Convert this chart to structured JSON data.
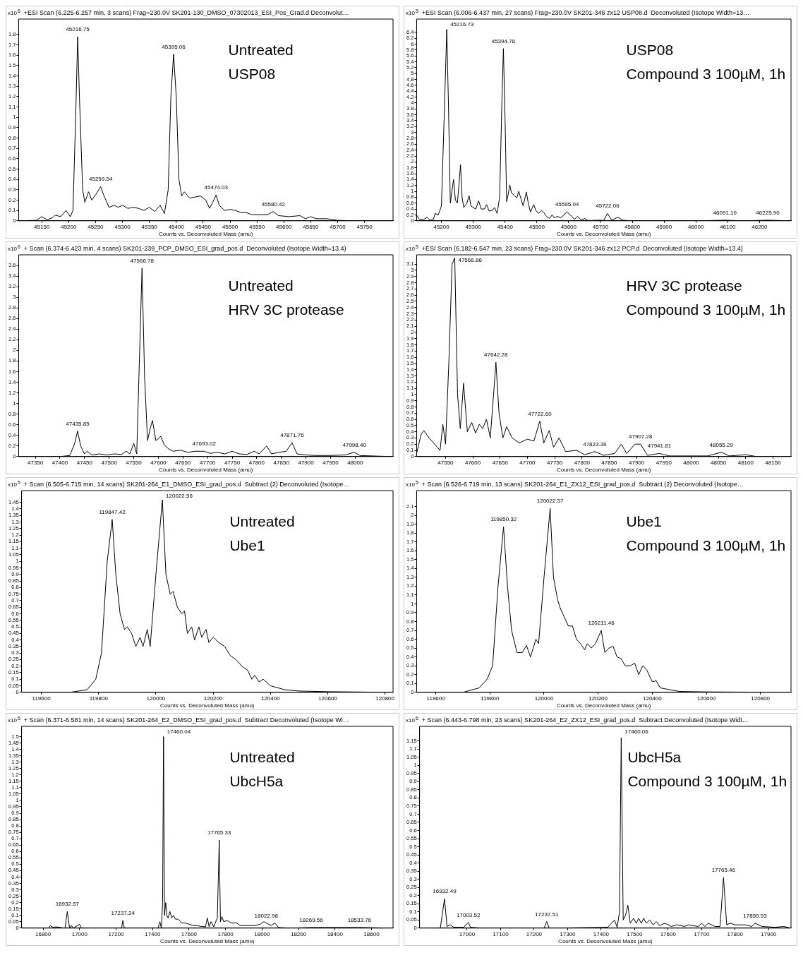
{
  "chart_data": [
    {
      "type": "line",
      "title": "+ESI Scan (6.225-6.257 min, 3 scans) Frag=230.0V SK201-130_DMSO_07302013_ESI_Pos_Grad.d Deconvolut…",
      "xlabel": "Counts vs. Deconvoluted Mass (amu)",
      "ylabel": "x10$^{6}$",
      "marker": "none",
      "line_style": "solid",
      "grid": false,
      "xlim": [
        45107,
        45803
      ],
      "xticks": [
        45150,
        45200,
        45250,
        45300,
        45350,
        45400,
        45450,
        45500,
        45550,
        45600,
        45650,
        45700,
        45750
      ],
      "ylim": [
        0,
        1.95
      ],
      "yticks": [
        0,
        0.1,
        0.2,
        0.3,
        0.4,
        0.5,
        0.6,
        0.7,
        0.8,
        0.9,
        1,
        1.1,
        1.2,
        1.3,
        1.4,
        1.5,
        1.6,
        1.7,
        1.8
      ],
      "x": [
        45110,
        45140,
        45150,
        45160,
        45170,
        45175,
        45185,
        45195,
        45203,
        45208,
        45213,
        45216.75,
        45220,
        45226,
        45230,
        45237,
        45243,
        45250,
        45259.54,
        45265,
        45275,
        45285,
        45292,
        45300,
        45310,
        45320,
        45330,
        45340,
        45350,
        45360,
        45370,
        45378,
        45385,
        45390,
        45395.06,
        45400,
        45405,
        45410,
        45415,
        45425,
        45435,
        45445,
        45455,
        45462,
        45468,
        45474.03,
        45480,
        45490,
        45500,
        45510,
        45520,
        45530,
        45540,
        45560,
        45570,
        45580.42,
        45590,
        45610,
        45630,
        45640,
        45650,
        45660,
        45680,
        45700,
        45730,
        45800
      ],
      "series": [
        {
          "color": "#000000",
          "values": [
            0,
            0.005,
            0.04,
            0.01,
            0.03,
            0.055,
            0.04,
            0.1,
            0.04,
            0.1,
            1.0,
            1.78,
            1.2,
            0.3,
            0.18,
            0.28,
            0.2,
            0.25,
            0.33,
            0.25,
            0.13,
            0.15,
            0.13,
            0.15,
            0.12,
            0.13,
            0.12,
            0.1,
            0.13,
            0.09,
            0.15,
            0.07,
            0.3,
            1.2,
            1.61,
            1.2,
            0.4,
            0.24,
            0.28,
            0.22,
            0.23,
            0.24,
            0.2,
            0.12,
            0.18,
            0.25,
            0.15,
            0.1,
            0.11,
            0.1,
            0.08,
            0.08,
            0.06,
            0.06,
            0.06,
            0.09,
            0.05,
            0.04,
            0.05,
            0.02,
            0.04,
            0.02,
            0.02,
            0.005,
            0,
            0
          ]
        }
      ],
      "annotations": [
        "Untreated",
        "USP08",
        {
          "text": "45216.75",
          "x": 45216.75,
          "y": 1.78
        },
        {
          "text": "45259.54",
          "x": 45259.54,
          "y": 0.33
        },
        {
          "text": "45395.06",
          "x": 45395.06,
          "y": 1.61
        },
        {
          "text": "45474.03",
          "x": 45474.03,
          "y": 0.25
        },
        {
          "text": "45580.42",
          "x": 45580.42,
          "y": 0.09
        }
      ]
    },
    {
      "type": "line",
      "title": "+ESI Scan (6.006-6.437 min, 27 scans) Frag=230.0V SK201-346 zx12 USP08.d  Deconvoluted (Isotope Width=13…",
      "xlabel": "Counts vs. Deconvoluted Mass (amu)",
      "ylabel": "x10$^{5}$",
      "marker": "none",
      "line_style": "solid",
      "grid": false,
      "xlim": [
        45122,
        46299
      ],
      "xticks": [
        45200,
        45300,
        45400,
        45500,
        45600,
        45700,
        45800,
        45900,
        46000,
        46100,
        46200
      ],
      "ylim": [
        0,
        6.85
      ],
      "yticks": [
        0,
        0.2,
        0.4,
        0.6,
        0.8,
        1,
        1.2,
        1.4,
        1.6,
        1.8,
        2,
        2.2,
        2.4,
        2.6,
        2.8,
        3,
        3.2,
        3.4,
        3.6,
        3.8,
        4,
        4.2,
        4.4,
        4.6,
        4.8,
        5,
        5.2,
        5.4,
        5.6,
        5.8,
        6,
        6.2,
        6.4
      ],
      "x": [
        45122,
        45130,
        45145,
        45155,
        45165,
        45175,
        45180,
        45190,
        45200,
        45210,
        45216.73,
        45222,
        45228,
        45233,
        45238,
        45244,
        45250,
        45255,
        45260,
        45265,
        45270,
        45280,
        45287,
        45293,
        45300,
        45308,
        45317,
        45325,
        45335,
        45342,
        45350,
        45360,
        45367,
        45375,
        45383,
        45390,
        45394.78,
        45400,
        45405,
        45410,
        45415,
        45420,
        45430,
        45437,
        45443,
        45450,
        45457,
        45467,
        45473,
        45480,
        45490,
        45497,
        45505,
        45515,
        45522,
        45530,
        45540,
        45548,
        45555,
        45565,
        45575,
        45595.04,
        45610,
        45618,
        45628,
        45640,
        45650,
        45660,
        45700,
        45710,
        45722.06,
        45735,
        45755,
        45770,
        45800,
        46000,
        46091.19,
        46150,
        46225.9,
        46299
      ],
      "series": [
        {
          "color": "#000000",
          "values": [
            0.2,
            0.05,
            0.05,
            0.12,
            0.02,
            0.05,
            0.25,
            0.2,
            0.5,
            4.0,
            6.5,
            4,
            0.6,
            1.0,
            1.4,
            0.7,
            0.6,
            1.2,
            1.9,
            0.8,
            0.45,
            0.6,
            0.85,
            0.5,
            0.45,
            0.4,
            0.68,
            0.4,
            0.4,
            0.55,
            0.33,
            0.35,
            0.45,
            0.25,
            0.8,
            4,
            5.85,
            3.5,
            0.65,
            0.9,
            1.22,
            0.95,
            0.85,
            0.78,
            1.0,
            0.75,
            0.5,
            0.98,
            0.6,
            0.3,
            0.55,
            0.35,
            0.25,
            0.35,
            0.28,
            0.15,
            0.08,
            0.2,
            0.1,
            0.15,
            0.1,
            0.3,
            0.15,
            0.05,
            0.15,
            0.02,
            0.08,
            0.01,
            0.02,
            0.01,
            0.25,
            0.02,
            0.12,
            0.02,
            0,
            0,
            0.02,
            0,
            0.02,
            0
          ]
        }
      ],
      "annotations": [
        "USP08",
        "Compound 3 100µM, 1h",
        {
          "text": "45216.73",
          "x": 45216.73,
          "y": 6.5
        },
        {
          "text": "45394.78",
          "x": 45394.78,
          "y": 5.85
        },
        {
          "text": "45595.04",
          "x": 45595.04,
          "y": 0.3
        },
        {
          "text": "45722.06",
          "x": 45722.06,
          "y": 0.25
        },
        {
          "text": "46091.19",
          "x": 46091.19,
          "y": 0.02
        },
        {
          "text": "46225.90",
          "x": 46225.9,
          "y": 0.02
        }
      ]
    },
    {
      "type": "line",
      "title": "+ Scan (6.374-6.423 min, 4 scans) SK201-239_PCP_DMSO_ESI_grad_pos.d  Deconvoluted (Isotope Width=13.4)",
      "xlabel": "Counts vs. Deconvoluted Mass (amu)",
      "ylabel": "x10$^{6}$",
      "marker": "none",
      "line_style": "solid",
      "grid": false,
      "xlim": [
        47316,
        48077
      ],
      "xticks": [
        47350,
        47400,
        47450,
        47500,
        47550,
        47600,
        47650,
        47700,
        47750,
        47800,
        47850,
        47900,
        47950,
        48000
      ],
      "ylim": [
        0,
        3.8
      ],
      "yticks": [
        0,
        0.2,
        0.4,
        0.6,
        0.8,
        1,
        1.2,
        1.4,
        1.6,
        1.8,
        2,
        2.2,
        2.4,
        2.6,
        2.8,
        3,
        3.2,
        3.4,
        3.6
      ],
      "x": [
        47316,
        47400,
        47420,
        47430,
        47435.85,
        47442,
        47450,
        47455,
        47465,
        47480,
        47495,
        47510,
        47525,
        47535,
        47542,
        47550,
        47556,
        47562,
        47566.78,
        47572,
        47578,
        47584,
        47588,
        47595,
        47605,
        47612,
        47620,
        47630,
        47645,
        47660,
        47675,
        47693.02,
        47705,
        47720,
        47735,
        47750,
        47765,
        47780,
        47795,
        47805,
        47820,
        47830,
        47845,
        47860,
        47871.76,
        47882,
        47900,
        47920,
        47950,
        47980,
        47998.4,
        48010,
        48040,
        48077
      ],
      "series": [
        {
          "color": "#000000",
          "values": [
            0,
            0,
            0.02,
            0.25,
            0.48,
            0.2,
            0.05,
            0.1,
            0.03,
            0.05,
            0.03,
            0.05,
            0.04,
            0.1,
            0.05,
            0.25,
            0.05,
            2.0,
            3.55,
            1.5,
            0.3,
            0.55,
            0.68,
            0.3,
            0.38,
            0.22,
            0.15,
            0.1,
            0.12,
            0.08,
            0.1,
            0.1,
            0.06,
            0.08,
            0.05,
            0.1,
            0.05,
            0.04,
            0.1,
            0.05,
            0.2,
            0.05,
            0.08,
            0.1,
            0.26,
            0.05,
            0.03,
            0.02,
            0.02,
            0.03,
            0.08,
            0.02,
            0.01,
            0
          ]
        }
      ],
      "annotations": [
        "Untreated",
        "HRV 3C protease",
        {
          "text": "47435.85",
          "x": 47435.85,
          "y": 0.48
        },
        {
          "text": "47566.78",
          "x": 47566.78,
          "y": 3.55
        },
        {
          "text": "47693.02",
          "x": 47693.02,
          "y": 0.1
        },
        {
          "text": "47871.76",
          "x": 47871.76,
          "y": 0.26
        },
        {
          "text": "47998.40",
          "x": 47998.4,
          "y": 0.08
        }
      ]
    },
    {
      "type": "line",
      "title": "+ESI Scan (6.182-6.547 min, 23 scans) Frag=230.0V SK201-346 zx12 PCP.d  Deconvoluted (Isotope Width=13.4)",
      "xlabel": "Counts vs. Deconvoluted Mass (amu)",
      "ylabel": "x10$^{5}$",
      "marker": "none",
      "line_style": "solid",
      "grid": false,
      "xlim": [
        47497,
        48183
      ],
      "xticks": [
        47550,
        47600,
        47650,
        47700,
        47750,
        47800,
        47850,
        47900,
        47950,
        48000,
        48050,
        48100,
        48150
      ],
      "ylim": [
        0,
        3.25
      ],
      "yticks": [
        0,
        0.1,
        0.2,
        0.3,
        0.4,
        0.5,
        0.6,
        0.7,
        0.8,
        0.9,
        1,
        1.1,
        1.2,
        1.3,
        1.4,
        1.5,
        1.6,
        1.7,
        1.8,
        1.9,
        2,
        2.1,
        2.2,
        2.3,
        2.4,
        2.5,
        2.6,
        2.7,
        2.8,
        2.9,
        3,
        3.1
      ],
      "x": [
        47497,
        47505,
        47510,
        47520,
        47530,
        47540,
        47545,
        47550,
        47556,
        47562,
        47566.86,
        47572,
        47577,
        47583,
        47590,
        47598,
        47605,
        47612,
        47618,
        47625,
        47632,
        47638,
        47642.28,
        47648,
        47655,
        47662,
        47672,
        47685,
        47700,
        47712,
        47722.6,
        47730,
        47740,
        47748,
        47758,
        47770,
        47790,
        47805,
        47823.39,
        47840,
        47860,
        47872,
        47882,
        47897,
        47907.28,
        47920,
        47941.81,
        47960,
        48000,
        48030,
        48055.29,
        48070,
        48100,
        48120,
        48183
      ],
      "series": [
        {
          "color": "#000000",
          "values": [
            0.05,
            0.35,
            0.42,
            0.3,
            0.2,
            0.1,
            0.52,
            0.2,
            1.5,
            3.1,
            3.2,
            1.0,
            0.45,
            1.18,
            0.4,
            0.55,
            0.38,
            0.52,
            0.45,
            0.6,
            0.3,
            1.0,
            1.52,
            0.7,
            0.3,
            0.48,
            0.3,
            0.22,
            0.28,
            0.25,
            0.57,
            0.22,
            0.42,
            0.15,
            0.3,
            0.08,
            0.1,
            0.03,
            0.08,
            0.02,
            0.05,
            0.2,
            0.05,
            0.2,
            0.2,
            0.02,
            0.05,
            0.01,
            0.01,
            0.01,
            0.07,
            0.01,
            0.03,
            0,
            0
          ]
        }
      ],
      "annotations": [
        "HRV 3C protease",
        "Compound 3 100µM, 1h",
        {
          "text": "47566.86",
          "x": 47566.86,
          "y": 3.2
        },
        {
          "text": "47642.28",
          "x": 47642.28,
          "y": 1.52
        },
        {
          "text": "47722.60",
          "x": 47722.6,
          "y": 0.57
        },
        {
          "text": "47823.39",
          "x": 47823.39,
          "y": 0.08
        },
        {
          "text": "47907.28",
          "x": 47907.28,
          "y": 0.2
        },
        {
          "text": "47941.81",
          "x": 47941.81,
          "y": 0.05
        },
        {
          "text": "48055.29",
          "x": 48055.29,
          "y": 0.07
        }
      ]
    },
    {
      "type": "line",
      "title": "+ Scan (6.505-6.715 min, 14 scans) SK201-264_E1_DMSO_ESI_grad_pos.d  Subtract (2) Deconvoluted (Isotope…",
      "xlabel": "Counts vs. Deconvoluted Mass (amu)",
      "ylabel": "x10$^{5}$",
      "marker": "none",
      "line_style": "solid",
      "grid": false,
      "xlim": [
        119531,
        120828
      ],
      "xticks": [
        119600,
        119800,
        120000,
        120200,
        120400,
        120600,
        120800
      ],
      "ylim": [
        0,
        1.54
      ],
      "yticks": [
        0,
        0.05,
        0.1,
        0.15,
        0.2,
        0.25,
        0.3,
        0.35,
        0.4,
        0.45,
        0.5,
        0.55,
        0.6,
        0.65,
        0.7,
        0.75,
        0.8,
        0.85,
        0.9,
        0.95,
        1,
        1.05,
        1.1,
        1.15,
        1.2,
        1.25,
        1.3,
        1.35,
        1.4,
        1.45
      ],
      "x": [
        119531,
        119700,
        119760,
        119790,
        119810,
        119830,
        119847.42,
        119860,
        119875,
        119890,
        119900,
        119915,
        119930,
        119945,
        119955,
        119970,
        119980,
        120000,
        120022.56,
        120035,
        120050,
        120060,
        120075,
        120090,
        120100,
        120110,
        120125,
        120135,
        120150,
        120160,
        120175,
        120185,
        120200,
        120220,
        120240,
        120260,
        120280,
        120300,
        120320,
        120335,
        120345,
        120360,
        120375,
        120400,
        120450,
        120500,
        120600,
        120828
      ],
      "series": [
        {
          "color": "#000000",
          "values": [
            0,
            0,
            0.02,
            0.1,
            0.3,
            1.0,
            1.32,
            0.9,
            0.6,
            0.48,
            0.5,
            0.45,
            0.35,
            0.42,
            0.35,
            0.48,
            0.35,
            0.9,
            1.47,
            0.9,
            0.75,
            0.77,
            0.65,
            0.6,
            0.62,
            0.45,
            0.5,
            0.4,
            0.5,
            0.42,
            0.48,
            0.38,
            0.42,
            0.38,
            0.35,
            0.28,
            0.25,
            0.2,
            0.17,
            0.1,
            0.13,
            0.08,
            0.1,
            0.05,
            0.02,
            0.01,
            0.005,
            0
          ]
        }
      ],
      "annotations": [
        "Untreated",
        "Ube1",
        {
          "text": "119847.42",
          "x": 119847.42,
          "y": 1.32
        },
        {
          "text": "120022.56",
          "x": 120022.56,
          "y": 1.47
        }
      ]
    },
    {
      "type": "line",
      "title": "+ Scan (6.526-6.719 min, 13 scans) SK201-264_E1_ZX12_ESI_grad_pos.d  Subtract (2) Deconvoluted (Isotope…",
      "xlabel": "Counts vs. Deconvoluted Mass (amu)",
      "ylabel": "x10$^{5}$",
      "marker": "none",
      "line_style": "solid",
      "grid": false,
      "xlim": [
        119529,
        120913
      ],
      "xticks": [
        119600,
        119800,
        120000,
        120200,
        120400,
        120600,
        120800
      ],
      "ylim": [
        0,
        2.28
      ],
      "yticks": [
        0,
        0.1,
        0.2,
        0.3,
        0.4,
        0.5,
        0.6,
        0.7,
        0.8,
        0.9,
        1,
        1.1,
        1.2,
        1.3,
        1.4,
        1.5,
        1.6,
        1.7,
        1.8,
        1.9,
        2,
        2.1
      ],
      "x": [
        119529,
        119700,
        119760,
        119790,
        119810,
        119830,
        119850.32,
        119865,
        119880,
        119900,
        119920,
        119935,
        119950,
        119970,
        119980,
        120000,
        120022.57,
        120035,
        120050,
        120060,
        120075,
        120090,
        120105,
        120120,
        120135,
        120150,
        120160,
        120175,
        120190,
        120211.46,
        120225,
        120240,
        120255,
        120270,
        120285,
        120300,
        120320,
        120335,
        120350,
        120365,
        120380,
        120400,
        120415,
        120430,
        120500,
        120600,
        120913
      ],
      "series": [
        {
          "color": "#000000",
          "values": [
            0,
            0,
            0.05,
            0.15,
            0.3,
            1.2,
            1.87,
            1.2,
            0.7,
            0.45,
            0.45,
            0.53,
            0.4,
            0.6,
            0.55,
            1.3,
            2.08,
            1.3,
            1.05,
            0.95,
            0.85,
            0.75,
            0.75,
            0.6,
            0.55,
            0.48,
            0.55,
            0.5,
            0.55,
            0.7,
            0.45,
            0.5,
            0.52,
            0.4,
            0.38,
            0.3,
            0.3,
            0.33,
            0.2,
            0.3,
            0.25,
            0.12,
            0.13,
            0.05,
            0.01,
            0.005,
            0
          ]
        }
      ],
      "annotations": [
        "Ube1",
        "Compound 3 100µM, 1h",
        {
          "text": "119850.32",
          "x": 119850.32,
          "y": 1.87
        },
        {
          "text": "120022.57",
          "x": 120022.57,
          "y": 2.08
        },
        {
          "text": "120211.46",
          "x": 120211.46,
          "y": 0.7
        }
      ]
    },
    {
      "type": "line",
      "title": "+ Scan (6.371-6.581 min, 14 scans) SK201-264_E2_DMSO_ESI_grad_pos.d  Subtract Deconvoluted (Isotope Wi…",
      "xlabel": "Counts vs. Deconvoluted Mass (amu)",
      "ylabel": "x10$^{6}$",
      "marker": "none",
      "line_style": "solid",
      "grid": false,
      "xlim": [
        16682,
        18718
      ],
      "xticks": [
        16800,
        17000,
        17200,
        17400,
        17600,
        17800,
        18000,
        18200,
        18400,
        18600
      ],
      "ylim": [
        0,
        1.58
      ],
      "yticks": [
        0,
        0.05,
        0.1,
        0.15,
        0.2,
        0.25,
        0.3,
        0.35,
        0.4,
        0.45,
        0.5,
        0.55,
        0.6,
        0.65,
        0.7,
        0.75,
        0.8,
        0.85,
        0.9,
        0.95,
        1,
        1.05,
        1.1,
        1.15,
        1.2,
        1.25,
        1.3,
        1.35,
        1.4,
        1.45,
        1.5
      ],
      "x": [
        16682,
        16830,
        16840,
        16850,
        16860,
        16870,
        16920,
        16932.57,
        16945,
        16955,
        16965,
        17000,
        17010,
        17230,
        17237.24,
        17245,
        17430,
        17440,
        17448,
        17455,
        17460.04,
        17465,
        17472,
        17478,
        17485,
        17495,
        17505,
        17515,
        17525,
        17540,
        17560,
        17580,
        17600,
        17620,
        17640,
        17660,
        17690,
        17700,
        17710,
        17720,
        17735,
        17755,
        17765.33,
        17772,
        17780,
        17790,
        17810,
        17830,
        17860,
        17880,
        17920,
        17960,
        17990,
        18010,
        18022.98,
        18050,
        18070,
        18090,
        18150,
        18269.56,
        18533.76,
        18718
      ],
      "series": [
        {
          "color": "#000000",
          "values": [
            0,
            0,
            0.02,
            0.01,
            0.005,
            0.01,
            0,
            0.13,
            0,
            0.02,
            0,
            0.03,
            0,
            0,
            0.06,
            0,
            0,
            0.05,
            0,
            0.2,
            1.5,
            0.1,
            0.2,
            0.1,
            0.08,
            0.13,
            0.08,
            0.1,
            0.07,
            0.07,
            0.04,
            0.04,
            0.03,
            0.02,
            0.02,
            0.015,
            0.01,
            0.08,
            0.01,
            0.05,
            0.01,
            0.08,
            0.69,
            0.05,
            0.09,
            0.05,
            0.06,
            0.04,
            0.04,
            0.02,
            0.02,
            0.02,
            0.03,
            0.05,
            0.04,
            0.02,
            0.04,
            0.005,
            0,
            0.005,
            0.005,
            0
          ]
        }
      ],
      "annotations": [
        "Untreated",
        "UbcH5a",
        {
          "text": "16932.57",
          "x": 16932.57,
          "y": 0.13
        },
        {
          "text": "17237.24",
          "x": 17237.24,
          "y": 0.06
        },
        {
          "text": "17460.04",
          "x": 17460.04,
          "y": 1.5
        },
        {
          "text": "17765.33",
          "x": 17765.33,
          "y": 0.69
        },
        {
          "text": "18022.98",
          "x": 18022.98,
          "y": 0.04
        },
        {
          "text": "18269.56",
          "x": 18269.56,
          "y": 0.005
        },
        {
          "text": "18533.76",
          "x": 18533.76,
          "y": 0.005
        }
      ]
    },
    {
      "type": "line",
      "title": "+ Scan (6.443-6.798 min, 23 scans) SK201-264_E2_ZX12_ESI_grad_pos.d  Subtract Deconvoluted (Isotope Widt…",
      "xlabel": "Counts vs. Deconvoluted Mass (amu)",
      "ylabel": "x10$^{6}$",
      "marker": "none",
      "line_style": "solid",
      "grid": false,
      "xlim": [
        16858,
        17967
      ],
      "xticks": [
        17000,
        17100,
        17200,
        17300,
        17400,
        17500,
        17600,
        17700,
        17800,
        17900
      ],
      "ylim": [
        0,
        1.24
      ],
      "yticks": [
        0,
        0.05,
        0.1,
        0.15,
        0.2,
        0.25,
        0.3,
        0.35,
        0.4,
        0.45,
        0.5,
        0.55,
        0.6,
        0.65,
        0.7,
        0.75,
        0.8,
        0.85,
        0.9,
        0.95,
        1,
        1.05,
        1.1,
        1.15
      ],
      "x": [
        16858,
        16920,
        16932.49,
        16940,
        16950,
        16960,
        16990,
        17003.52,
        17010,
        17050,
        17230,
        17237.51,
        17245,
        17420,
        17440,
        17448,
        17455,
        17460.06,
        17466,
        17473,
        17480,
        17487,
        17497,
        17505,
        17512,
        17520,
        17527,
        17535,
        17545,
        17555,
        17565,
        17575,
        17590,
        17610,
        17625,
        17650,
        17660,
        17690,
        17700,
        17710,
        17720,
        17740,
        17755,
        17765.46,
        17775,
        17785,
        17800,
        17830,
        17850,
        17859.53,
        17880,
        17920,
        17945,
        17967
      ],
      "series": [
        {
          "color": "#000000",
          "values": [
            0,
            0,
            0.18,
            0.01,
            0.02,
            0.005,
            0.005,
            0.035,
            0.005,
            0,
            0,
            0.04,
            0,
            0.005,
            0.05,
            0.005,
            0.1,
            1.17,
            0.05,
            0.08,
            0.14,
            0.03,
            0.06,
            0.03,
            0.06,
            0.03,
            0.06,
            0.03,
            0.05,
            0.02,
            0.04,
            0.015,
            0.03,
            0.01,
            0.02,
            0.01,
            0.02,
            0.01,
            0.03,
            0.01,
            0.03,
            0.01,
            0.01,
            0.31,
            0.02,
            0.03,
            0.02,
            0.02,
            0.01,
            0.03,
            0.01,
            0.005,
            0.01,
            0
          ]
        }
      ],
      "annotations": [
        "UbcH5a",
        "Compound 3 100µM, 1h",
        {
          "text": "16932.49",
          "x": 16932.49,
          "y": 0.18
        },
        {
          "text": "17003.52",
          "x": 17003.52,
          "y": 0.035
        },
        {
          "text": "17237.51",
          "x": 17237.51,
          "y": 0.04
        },
        {
          "text": "17460.06",
          "x": 17460.06,
          "y": 1.17
        },
        {
          "text": "17765.46",
          "x": 17765.46,
          "y": 0.31
        },
        {
          "text": "17859.53",
          "x": 17859.53,
          "y": 0.03
        }
      ]
    }
  ]
}
